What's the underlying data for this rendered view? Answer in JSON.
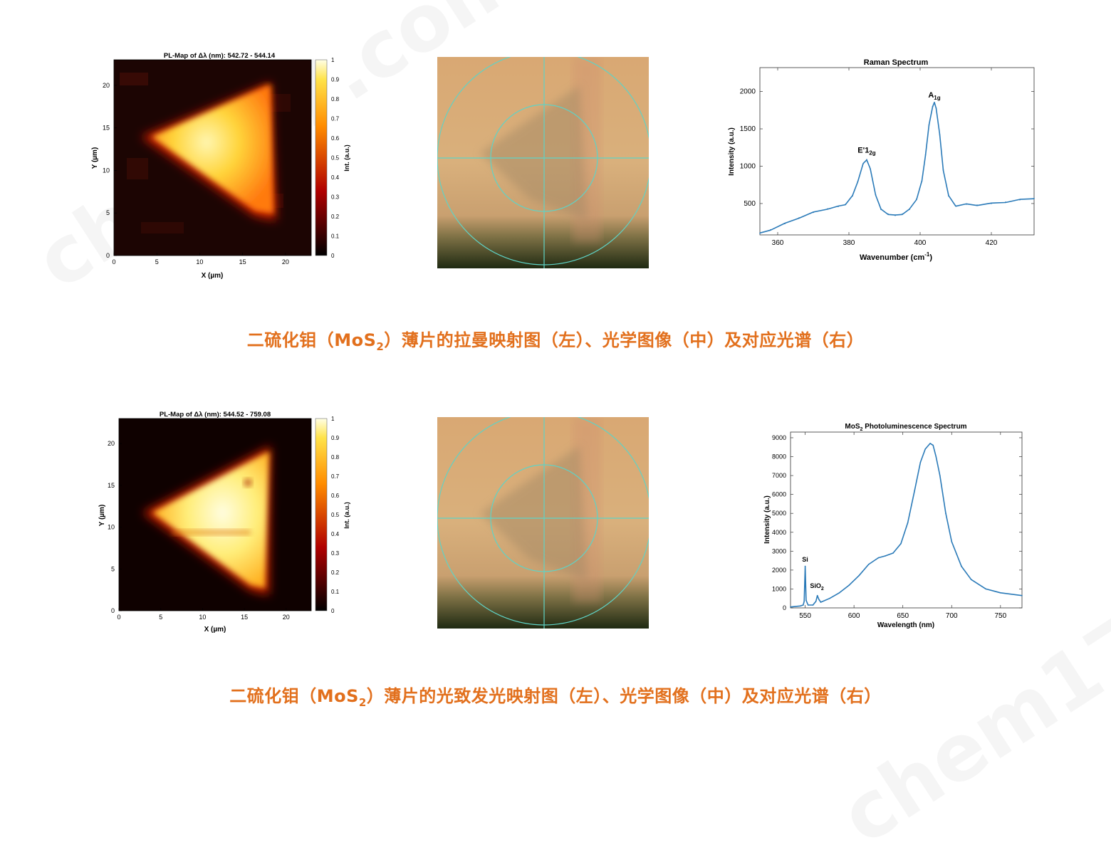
{
  "watermark": "chem17.com",
  "top": {
    "caption": {
      "pre": "二硫化钼（MoS",
      "sub": "2",
      "post": "）薄片的拉曼映射图（左）、光学图像（中）及对应光谱（右）"
    },
    "map": {
      "title": "PL-Map of Δλ (nm): 542.72 - 544.14",
      "xlabel": "X (µm)",
      "ylabel": "Y (µm)",
      "cbar_label": "Int. (a.u.)",
      "xticks": [
        "0",
        "5",
        "10",
        "15",
        "20"
      ],
      "yticks": [
        "0",
        "5",
        "10",
        "15",
        "20"
      ],
      "cbar_ticks": [
        "0",
        "0.1",
        "0.2",
        "0.3",
        "0.4",
        "0.5",
        "0.6",
        "0.7",
        "0.8",
        "0.9",
        "1"
      ]
    }
  },
  "bottom": {
    "caption": {
      "pre": "二硫化钼（MoS",
      "sub": "2",
      "post": "）薄片的光致发光映射图（左）、光学图像（中）及对应光谱（右）"
    },
    "map": {
      "title": "PL-Map of Δλ (nm): 544.52 - 759.08",
      "xlabel": "X (µm)",
      "ylabel": "Y (µm)",
      "cbar_label": "Int. (a.u.)",
      "xticks": [
        "0",
        "5",
        "10",
        "15",
        "20"
      ],
      "yticks": [
        "0",
        "5",
        "10",
        "15",
        "20"
      ],
      "cbar_ticks": [
        "0",
        "0.1",
        "0.2",
        "0.3",
        "0.4",
        "0.5",
        "0.6",
        "0.7",
        "0.8",
        "0.9",
        "1"
      ]
    }
  },
  "chart_data": [
    {
      "type": "line",
      "title": "Raman Spectrum",
      "xlabel": "Wavenumber (cm-1)",
      "ylabel": "Intensity (a.u.)",
      "xlim": [
        355,
        432
      ],
      "ylim": [
        80,
        2320
      ],
      "xticks": [
        "360",
        "380",
        "400",
        "420"
      ],
      "xtick_values": [
        360,
        380,
        400,
        420
      ],
      "yticks": [
        "500",
        "1000",
        "1500",
        "2000"
      ],
      "ytick_values": [
        500,
        1000,
        1500,
        2000
      ],
      "annotations": [
        {
          "text": "E'",
          "base": "1",
          "sub": "2g",
          "x": 385,
          "y": 1180
        },
        {
          "text": "A",
          "base": "",
          "sub": "1g",
          "x": 404,
          "y": 1920
        }
      ],
      "series": [
        {
          "color": "#2a7ab8",
          "x": [
            355,
            358,
            362,
            366,
            370,
            374,
            377,
            379,
            381,
            382.5,
            384,
            385,
            386,
            387.5,
            389,
            391,
            393,
            395,
            397,
            399,
            400.5,
            401.5,
            402.5,
            403.5,
            404,
            404.5,
            405.5,
            406.5,
            408,
            410,
            413,
            416,
            420,
            424,
            428,
            432
          ],
          "y": [
            100,
            150,
            230,
            310,
            380,
            430,
            460,
            490,
            600,
            800,
            1030,
            1090,
            960,
            620,
            420,
            360,
            340,
            360,
            420,
            560,
            800,
            1150,
            1550,
            1800,
            1850,
            1780,
            1420,
            950,
            600,
            470,
            490,
            480,
            500,
            520,
            550,
            570
          ]
        }
      ]
    },
    {
      "type": "line",
      "title": "MoS2 Photoluminescence Spectrum",
      "xlabel": "Wavelength (nm)",
      "ylabel": "Intensity (a.u.)",
      "xlim": [
        535,
        772
      ],
      "ylim": [
        0,
        9300
      ],
      "xticks": [
        "550",
        "600",
        "650",
        "700",
        "750"
      ],
      "xtick_values": [
        550,
        600,
        650,
        700,
        750
      ],
      "yticks": [
        "0",
        "1000",
        "2000",
        "3000",
        "4000",
        "5000",
        "6000",
        "7000",
        "8000",
        "9000"
      ],
      "ytick_values": [
        0,
        1000,
        2000,
        3000,
        4000,
        5000,
        6000,
        7000,
        8000,
        9000
      ],
      "annotations": [
        {
          "text": "Si",
          "base": "",
          "sub": "",
          "x": 550,
          "y": 2450
        },
        {
          "text": "SiO",
          "base": "",
          "sub": "2",
          "x": 562,
          "y": 1050
        }
      ],
      "series": [
        {
          "color": "#2a7ab8",
          "x": [
            535,
            545,
            548,
            549,
            550,
            551,
            553,
            558,
            561,
            562.5,
            564,
            566,
            575,
            585,
            595,
            605,
            615,
            625,
            632,
            640,
            648,
            655,
            662,
            668,
            673,
            678,
            681,
            684,
            688,
            694,
            700,
            710,
            720,
            735,
            750,
            772
          ],
          "y": [
            50,
            100,
            150,
            350,
            2200,
            400,
            150,
            150,
            350,
            650,
            450,
            300,
            500,
            800,
            1200,
            1700,
            2300,
            2650,
            2750,
            2900,
            3400,
            4500,
            6200,
            7700,
            8400,
            8700,
            8600,
            8000,
            7000,
            5000,
            3500,
            2200,
            1500,
            1000,
            800,
            650
          ]
        }
      ]
    }
  ]
}
